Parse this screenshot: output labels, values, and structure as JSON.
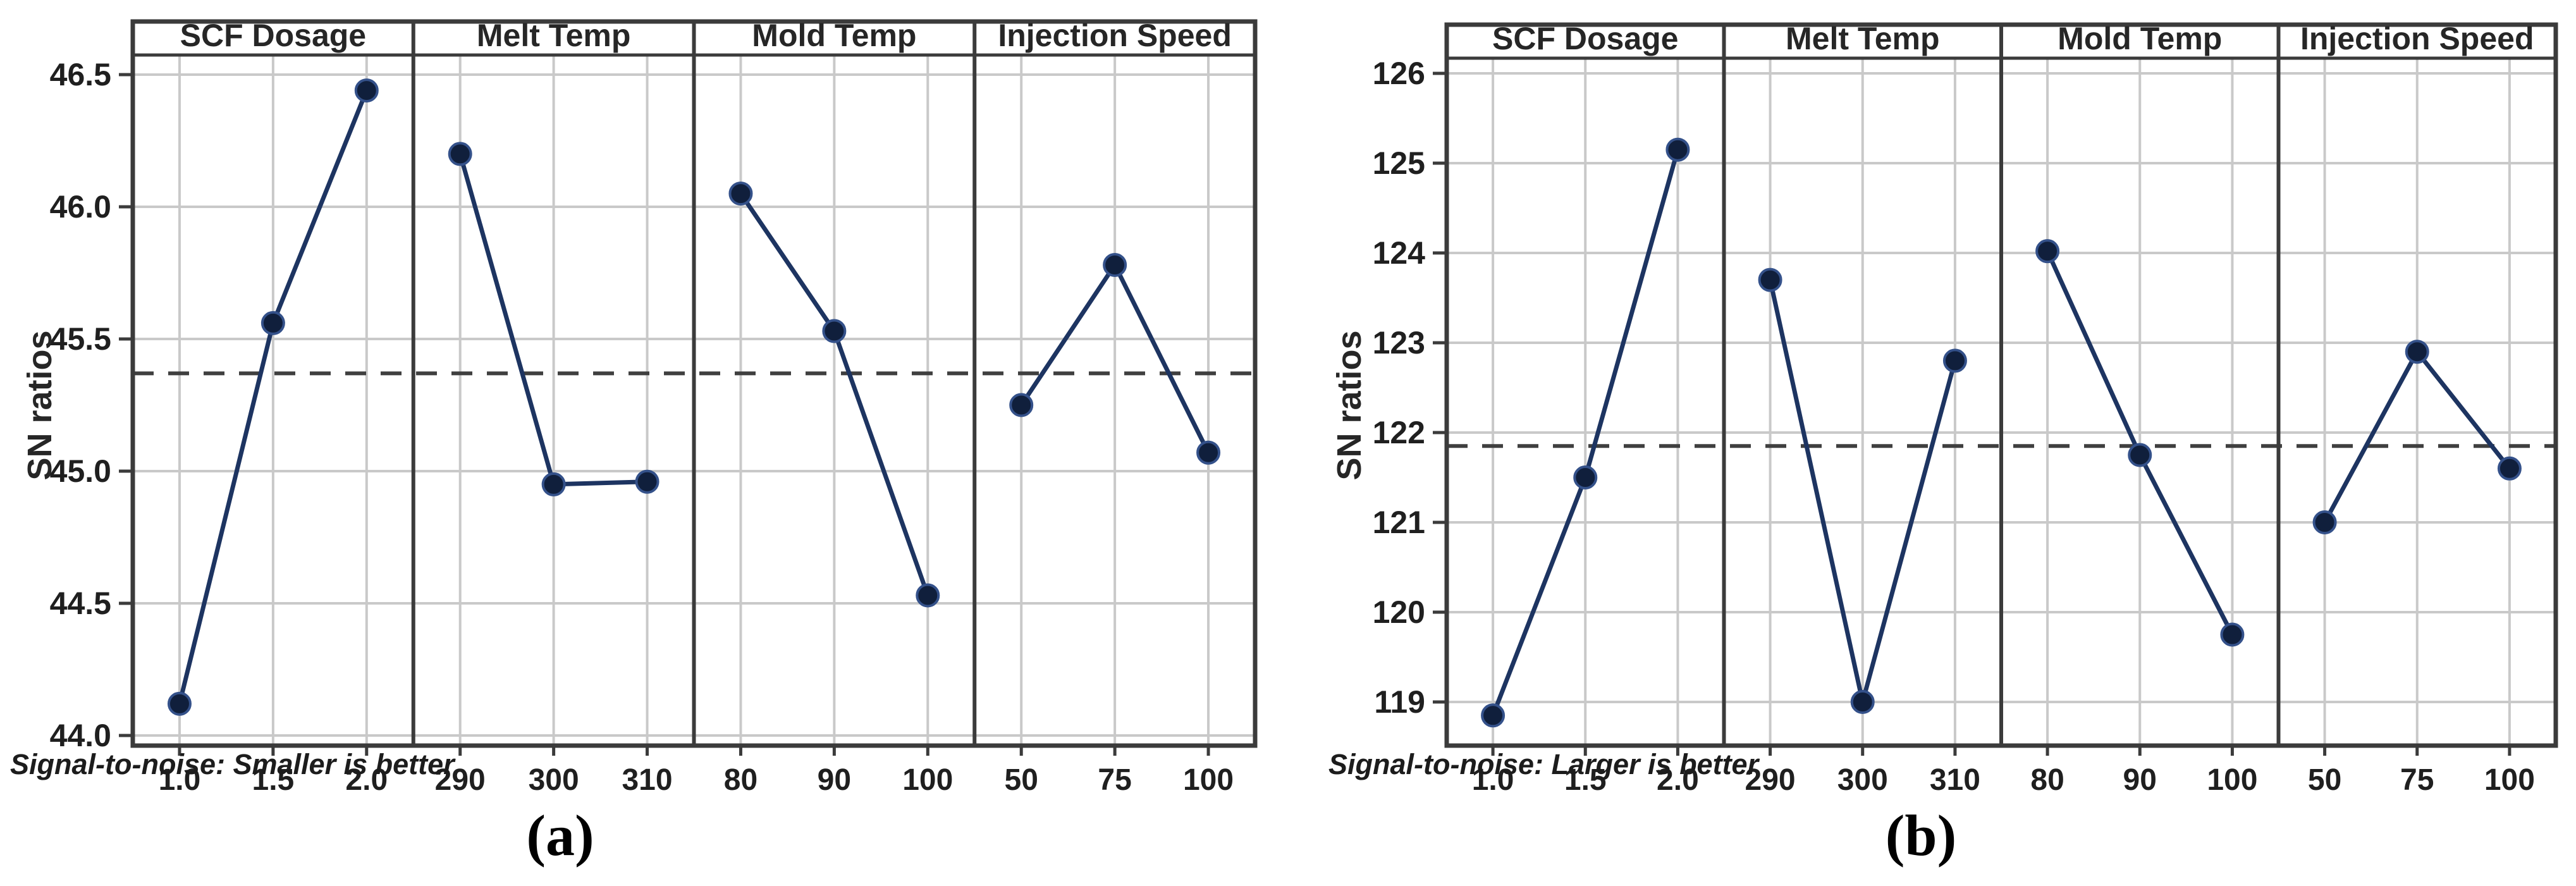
{
  "page": {
    "background": "#ffffff",
    "description": "Two Minitab-style main effects plots for SN ratios"
  },
  "colors": {
    "series_line": "#1d3461",
    "marker_fill": "#101f3c",
    "marker_stroke": "#34518a",
    "gridline": "#c9c9c9",
    "panel_border": "#3b3b3b",
    "mean_dash": "#3f3f3f",
    "tick_text": "#1f1f1f",
    "title_text": "#262626"
  },
  "chart_data": [
    {
      "id": "a",
      "type": "line",
      "caption": "(a)",
      "ylabel": "SN ratios",
      "footnote": "Signal-to-noise: Smaller is better",
      "legend_position": "none",
      "grid": true,
      "ylim": [
        44.0,
        46.5
      ],
      "ytick_values": [
        44.0,
        44.5,
        45.0,
        45.5,
        46.0,
        46.5
      ],
      "ytick_labels": [
        "44.0",
        "44.5",
        "45.0",
        "45.5",
        "46.0",
        "46.5"
      ],
      "mean_line": 45.37,
      "panels": [
        {
          "title": "SCF Dosage",
          "categories": [
            "1.0",
            "1.5",
            "2.0"
          ],
          "values": [
            44.12,
            45.56,
            46.44
          ]
        },
        {
          "title": "Melt Temp",
          "categories": [
            "290",
            "300",
            "310"
          ],
          "values": [
            46.2,
            44.95,
            44.96
          ]
        },
        {
          "title": "Mold Temp",
          "categories": [
            "80",
            "90",
            "100"
          ],
          "values": [
            46.05,
            45.53,
            44.53
          ]
        },
        {
          "title": "Injection Speed",
          "categories": [
            "50",
            "75",
            "100"
          ],
          "values": [
            45.25,
            45.78,
            45.07
          ]
        }
      ]
    },
    {
      "id": "b",
      "type": "line",
      "caption": "(b)",
      "ylabel": "SN ratios",
      "footnote": "Signal-to-noise: Larger is better",
      "legend_position": "none",
      "grid": true,
      "ylim": [
        119,
        126
      ],
      "ytick_values": [
        119,
        120,
        121,
        122,
        123,
        124,
        125,
        126
      ],
      "ytick_labels": [
        "119",
        "120",
        "121",
        "122",
        "123",
        "124",
        "125",
        "126"
      ],
      "mean_line": 121.85,
      "panels": [
        {
          "title": "SCF Dosage",
          "categories": [
            "1.0",
            "1.5",
            "2.0"
          ],
          "values": [
            118.85,
            121.5,
            125.15
          ]
        },
        {
          "title": "Melt Temp",
          "categories": [
            "290",
            "300",
            "310"
          ],
          "values": [
            123.7,
            119.0,
            122.8
          ]
        },
        {
          "title": "Mold Temp",
          "categories": [
            "80",
            "90",
            "100"
          ],
          "values": [
            124.02,
            121.75,
            119.75
          ]
        },
        {
          "title": "Injection Speed",
          "categories": [
            "50",
            "75",
            "100"
          ],
          "values": [
            121.0,
            122.9,
            121.6
          ]
        }
      ]
    }
  ]
}
